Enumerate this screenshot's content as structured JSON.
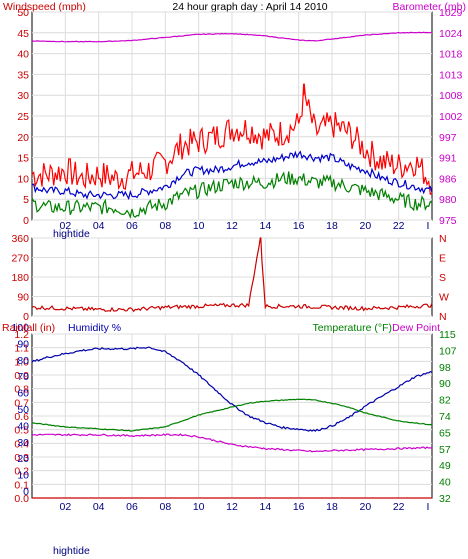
{
  "header": {
    "left_title": "Windspeed (mph)",
    "center_title": "24 hour graph day : April 14 2010",
    "right_title": "Barometer (mb)"
  },
  "bottom_header": {
    "rainfall_title": "Rainfall (in)",
    "humidity_title": "Humidity %",
    "temperature_title": "Temperature (°F)",
    "dewpoint_title": "Dew Point"
  },
  "colors": {
    "wind_gust": "#ff0000",
    "wind_avg": "#0000cc",
    "wind_low": "#008000",
    "barometer": "#cc00cc",
    "direction": "#cc0000",
    "humidity": "#0000aa",
    "temperature": "#008000",
    "dewpoint": "#cc00cc",
    "rainfall": "#cc0000",
    "axis_red": "#cc0000",
    "axis_blue": "#0000aa",
    "axis_green": "#008000",
    "axis_magenta": "#cc00cc"
  },
  "time_ticks": [
    "02",
    "04",
    "06",
    "08",
    "10",
    "12",
    "14",
    "16",
    "18",
    "20",
    "22",
    "I"
  ],
  "time_sub_label": "hightide",
  "chart_data": [
    {
      "id": "wind",
      "type": "line",
      "x_range": [
        0,
        24
      ],
      "left_axis": {
        "label": "Windspeed (mph)",
        "ylim": [
          0,
          50
        ],
        "ticks": [
          "0",
          "5",
          "10",
          "15",
          "20",
          "25",
          "30",
          "35",
          "40",
          "45",
          "50"
        ]
      },
      "right_axis": {
        "label": "Barometer (mb)",
        "ylim": [
          975,
          1029
        ],
        "ticks": [
          "975",
          "980",
          "986",
          "991",
          "997",
          "1002",
          "1008",
          "1013",
          "1018",
          "1024",
          "1029"
        ]
      },
      "series": [
        {
          "name": "gust",
          "axis": "left",
          "color_key": "wind_gust",
          "points": [
            [
              0,
              11
            ],
            [
              1,
              11
            ],
            [
              2,
              12
            ],
            [
              3,
              10
            ],
            [
              4,
              11
            ],
            [
              5,
              10
            ],
            [
              6,
              11
            ],
            [
              7,
              12
            ],
            [
              8,
              14
            ],
            [
              9,
              18
            ],
            [
              10,
              19
            ],
            [
              11,
              20
            ],
            [
              12,
              22
            ],
            [
              13,
              22
            ],
            [
              14,
              20
            ],
            [
              15,
              21
            ],
            [
              16,
              23
            ],
            [
              16.3,
              30
            ],
            [
              17,
              21
            ],
            [
              18,
              23
            ],
            [
              19,
              21
            ],
            [
              20,
              17
            ],
            [
              21,
              14
            ],
            [
              22,
              13
            ],
            [
              23,
              14
            ],
            [
              24,
              9
            ]
          ]
        },
        {
          "name": "avg",
          "axis": "left",
          "color_key": "wind_avg",
          "points": [
            [
              0,
              8
            ],
            [
              1,
              7
            ],
            [
              2,
              7
            ],
            [
              3,
              6
            ],
            [
              4,
              6
            ],
            [
              5,
              6
            ],
            [
              6,
              6
            ],
            [
              7,
              7
            ],
            [
              8,
              8
            ],
            [
              9,
              11
            ],
            [
              10,
              12
            ],
            [
              11,
              12
            ],
            [
              12,
              13
            ],
            [
              13,
              14
            ],
            [
              14,
              14
            ],
            [
              15,
              15
            ],
            [
              16,
              16
            ],
            [
              17,
              15
            ],
            [
              18,
              15
            ],
            [
              19,
              13
            ],
            [
              20,
              12
            ],
            [
              21,
              10
            ],
            [
              22,
              9
            ],
            [
              23,
              8
            ],
            [
              24,
              7
            ]
          ]
        },
        {
          "name": "low",
          "axis": "left",
          "color_key": "wind_low",
          "points": [
            [
              0,
              4
            ],
            [
              1,
              3
            ],
            [
              2,
              3
            ],
            [
              3,
              3
            ],
            [
              4,
              3
            ],
            [
              5,
              3
            ],
            [
              6,
              2
            ],
            [
              7,
              3
            ],
            [
              8,
              4
            ],
            [
              9,
              6
            ],
            [
              10,
              7
            ],
            [
              11,
              8
            ],
            [
              12,
              9
            ],
            [
              13,
              9
            ],
            [
              14,
              9
            ],
            [
              15,
              10
            ],
            [
              16,
              10
            ],
            [
              17,
              9
            ],
            [
              18,
              9
            ],
            [
              19,
              8
            ],
            [
              20,
              7
            ],
            [
              21,
              6
            ],
            [
              22,
              5
            ],
            [
              23,
              4
            ],
            [
              24,
              4
            ]
          ]
        },
        {
          "name": "barometer",
          "axis": "right",
          "color_key": "barometer",
          "points": [
            [
              0,
              1021.5
            ],
            [
              2,
              1021.3
            ],
            [
              4,
              1021.3
            ],
            [
              6,
              1021.6
            ],
            [
              8,
              1022.4
            ],
            [
              10,
              1023.2
            ],
            [
              12,
              1023.4
            ],
            [
              14,
              1022.8
            ],
            [
              16,
              1021.7
            ],
            [
              17,
              1021.5
            ],
            [
              18,
              1022
            ],
            [
              20,
              1023
            ],
            [
              22,
              1023.6
            ],
            [
              24,
              1023.7
            ]
          ]
        }
      ]
    },
    {
      "id": "direction",
      "type": "line",
      "x_range": [
        0,
        24
      ],
      "left_axis": {
        "ylim": [
          0,
          360
        ],
        "ticks": [
          "0",
          "90",
          "180",
          "270",
          "360"
        ]
      },
      "right_labels": [
        "N",
        "E",
        "S",
        "W",
        "N"
      ],
      "series": [
        {
          "name": "direction",
          "color_key": "direction",
          "points": [
            [
              0,
              40
            ],
            [
              2,
              35
            ],
            [
              4,
              30
            ],
            [
              6,
              30
            ],
            [
              8,
              40
            ],
            [
              10,
              45
            ],
            [
              12,
              50
            ],
            [
              13,
              50
            ],
            [
              13.7,
              360
            ],
            [
              14,
              45
            ],
            [
              16,
              45
            ],
            [
              18,
              40
            ],
            [
              20,
              35
            ],
            [
              22,
              40
            ],
            [
              24,
              50
            ]
          ]
        }
      ]
    },
    {
      "id": "climate",
      "type": "line",
      "x_range": [
        0,
        24
      ],
      "left_axis_rain": {
        "label": "Rainfall (in)",
        "ylim": [
          0,
          1.2
        ],
        "ticks": [
          "0.0",
          "0.1",
          "0.2",
          "0.3",
          "0.4",
          "0.5",
          "0.6",
          "0.7",
          "0.8",
          "0.9",
          "1.0",
          "1.1",
          "1.2"
        ]
      },
      "left_axis_humidity": {
        "label": "Humidity %",
        "ylim": [
          0,
          100
        ],
        "ticks": [
          "0",
          "10",
          "20",
          "30",
          "40",
          "50",
          "60",
          "70",
          "80",
          "90",
          "100"
        ]
      },
      "right_axis": {
        "label": "Temperature (°F)",
        "ylim": [
          32,
          115
        ],
        "ticks": [
          "32",
          "40",
          "49",
          "57",
          "65",
          "74",
          "82",
          "90",
          "98",
          "107",
          "115"
        ]
      },
      "series": [
        {
          "name": "humidity",
          "axis": "humidity",
          "color_key": "humidity",
          "points": [
            [
              0,
              83
            ],
            [
              1,
              86
            ],
            [
              2,
              88
            ],
            [
              3,
              90
            ],
            [
              4,
              91
            ],
            [
              5,
              91
            ],
            [
              6,
              91
            ],
            [
              7,
              92
            ],
            [
              8,
              89
            ],
            [
              9,
              83
            ],
            [
              10,
              75
            ],
            [
              11,
              66
            ],
            [
              12,
              57
            ],
            [
              13,
              50
            ],
            [
              14,
              46
            ],
            [
              15,
              43
            ],
            [
              16,
              42
            ],
            [
              17,
              41
            ],
            [
              18,
              44
            ],
            [
              19,
              49
            ],
            [
              20,
              56
            ],
            [
              21,
              62
            ],
            [
              22,
              68
            ],
            [
              23,
              74
            ],
            [
              24,
              77
            ]
          ]
        },
        {
          "name": "temperature",
          "axis": "temp",
          "color_key": "temperature",
          "points": [
            [
              0,
              70
            ],
            [
              2,
              68
            ],
            [
              4,
              67
            ],
            [
              6,
              66
            ],
            [
              7,
              67
            ],
            [
              8,
              68
            ],
            [
              9,
              71
            ],
            [
              10,
              74
            ],
            [
              11,
              76
            ],
            [
              12,
              78
            ],
            [
              13,
              80
            ],
            [
              14,
              81
            ],
            [
              15,
              81.5
            ],
            [
              16,
              82
            ],
            [
              17,
              81.5
            ],
            [
              18,
              80
            ],
            [
              19,
              78
            ],
            [
              20,
              75
            ],
            [
              21,
              73
            ],
            [
              22,
              71
            ],
            [
              23,
              70
            ],
            [
              24,
              69
            ]
          ]
        },
        {
          "name": "dewpoint",
          "axis": "temp",
          "color_key": "dewpoint",
          "points": [
            [
              0,
              64
            ],
            [
              2,
              64
            ],
            [
              4,
              64
            ],
            [
              6,
              63.5
            ],
            [
              8,
              64
            ],
            [
              9,
              64
            ],
            [
              10,
              63
            ],
            [
              11,
              61
            ],
            [
              12,
              59
            ],
            [
              13,
              58
            ],
            [
              14,
              57
            ],
            [
              15,
              56.5
            ],
            [
              16,
              56
            ],
            [
              17,
              55.5
            ],
            [
              18,
              56
            ],
            [
              20,
              56.5
            ],
            [
              22,
              57
            ],
            [
              24,
              57.5
            ]
          ]
        },
        {
          "name": "rainfall",
          "axis": "rain",
          "color_key": "rainfall",
          "points": [
            [
              0,
              0
            ],
            [
              24,
              0
            ]
          ]
        }
      ]
    }
  ]
}
